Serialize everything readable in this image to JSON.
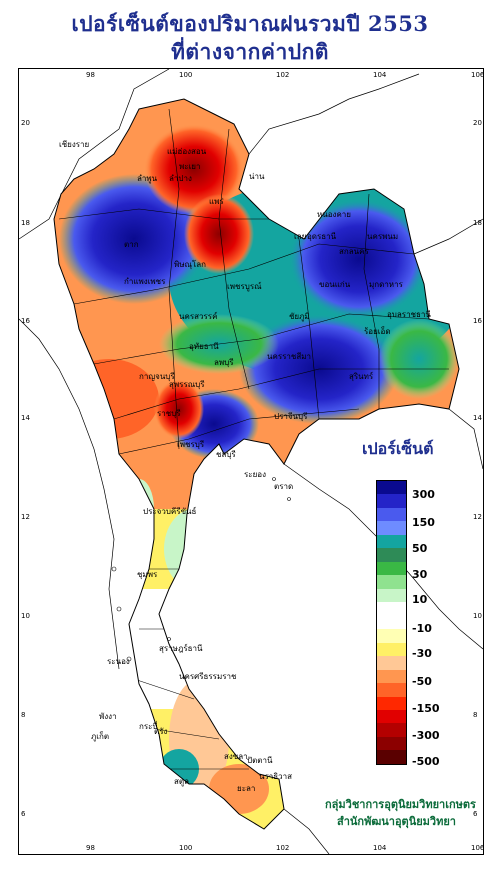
{
  "title_line1": "เปอร์เซ็นต์ของปริมาณฝนรวมปี 2553",
  "title_line2": "ที่ต่างจากค่าปกติ",
  "x_ticks": [
    "98",
    "100",
    "102",
    "104",
    "106"
  ],
  "y_ticks": [
    "20",
    "18",
    "16",
    "14",
    "12",
    "10",
    "8",
    "6"
  ],
  "legend": {
    "title": "เปอร์เซ็นต์",
    "labels": [
      "300",
      "150",
      "50",
      "30",
      "10",
      "-10",
      "-30",
      "-50",
      "-150",
      "-300",
      "-500"
    ],
    "colors": [
      "#0a0a8f",
      "#2424c8",
      "#4a5aee",
      "#6e8cff",
      "#14a5a0",
      "#2e8b57",
      "#3ab845",
      "#8fe28f",
      "#c8f5c8",
      "#ffffff",
      "#ffffff",
      "#ffffb4",
      "#fff066",
      "#ffc896",
      "#ff9650",
      "#ff6428",
      "#ff2800",
      "#e10000",
      "#b40000",
      "#8c0000",
      "#5a0000"
    ]
  },
  "provinces": [
    "เชียงราย",
    "แม่ฮ่องสอน",
    "พะเยา",
    "ลำพูน",
    "ลำปาง",
    "แพร่",
    "น่าน",
    "หนองคาย",
    "อุดรธานี",
    "สกลนคร",
    "นครพนม",
    "เลย",
    "มุกดาหาร",
    "ขอนแก่น",
    "ตาก",
    "พิษณุโลก",
    "กำแพงเพชร",
    "เพชรบูรณ์",
    "นครสวรรค์",
    "ชัยภูมิ",
    "ร้อยเอ็ด",
    "อุบลราชธานี",
    "นครราชสีมา",
    "ลพบุรี",
    "กาญจนบุรี",
    "สุพรรณบุรี",
    "สุรินทร์",
    "ปราจีนบุรี",
    "อุทัยธานี",
    "ราชบุรี",
    "ชลบุรี",
    "ระยอง",
    "ตราด",
    "เพชรบุรี",
    "ประจวบคีรีขันธ์",
    "ชุมพร",
    "ระนอง",
    "นครศรีธรรมราช",
    "สุราษฎร์ธานี",
    "พังงา",
    "ภูเก็ต",
    "กระบี่",
    "ตรัง",
    "สงขลา",
    "สตูล",
    "ปัตตานี",
    "ยะลา",
    "นราธิวาส"
  ],
  "credit_line1": "กลุ่มวิชาการอุตุนิยมวิทยาเกษตร",
  "credit_line2": "สำนักพัฒนาอุตุนิยมวิทยา"
}
